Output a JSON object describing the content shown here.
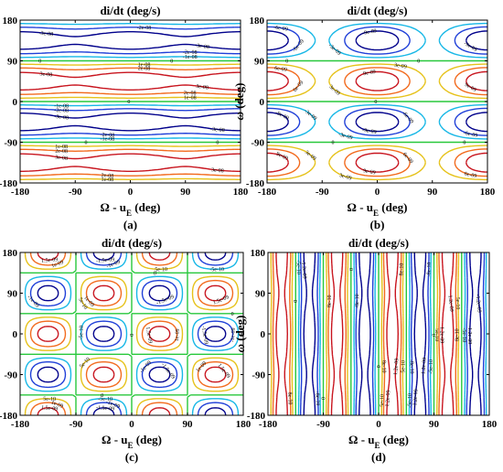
{
  "figure": {
    "panels": [
      {
        "id": "a",
        "tag": "(a)",
        "title": "di/dt (deg/s)",
        "ylabel": "ω",
        "ylabel_unit": "(deg)",
        "xlabel": "Ω - u",
        "xlabel_sub": "E",
        "xlabel_unit": " (deg)",
        "xticks": [
          "-180",
          "-90",
          "0",
          "90",
          "180"
        ],
        "yticks": [
          "180",
          "90",
          "0",
          "-90",
          "-180"
        ],
        "contour_labels": [
          "-1e-08",
          "-2e-08",
          "-3e-08",
          "1e-08",
          "2e-08",
          "3e-08",
          "0"
        ]
      },
      {
        "id": "b",
        "tag": "(b)",
        "title": "di/dt (deg/s)",
        "ylabel": "ω",
        "ylabel_unit": "(deg)",
        "xlabel": "Ω - u",
        "xlabel_sub": "E",
        "xlabel_unit": " (deg)",
        "xticks": [
          "-180",
          "-90",
          "0",
          "90",
          "180"
        ],
        "yticks": [
          "180",
          "90",
          "0",
          "-90",
          "-180"
        ],
        "contour_labels": [
          "-3e-09",
          "-6e-09",
          "-9e-09",
          "3e-09",
          "6e-09",
          "9e-09",
          "0"
        ]
      },
      {
        "id": "c",
        "tag": "(c)",
        "title": "di/dt (deg/s)",
        "ylabel": "ω",
        "ylabel_unit": "(deg)",
        "xlabel": "Ω - u",
        "xlabel_sub": "E",
        "xlabel_unit": " (deg)",
        "xticks": [
          "-180",
          "-90",
          "0",
          "90",
          "180"
        ],
        "yticks": [
          "180",
          "90",
          "0",
          "-90",
          "-180"
        ],
        "contour_labels": [
          "-5e-10",
          "-1e-09",
          "-1.5e-09",
          "5e-10",
          "1e-09",
          "1.5e-09",
          "0"
        ]
      },
      {
        "id": "d",
        "tag": "(d)",
        "title": "di/dt (deg/s)",
        "ylabel": "ω",
        "ylabel_unit": "(deg)",
        "xlabel": "Ω - u",
        "xlabel_sub": "E",
        "xlabel_unit": " (deg)",
        "xticks": [
          "-180",
          "-90",
          "0",
          "90",
          "180"
        ],
        "yticks": [
          "180",
          "90",
          "0",
          "-90",
          "-180"
        ],
        "contour_labels": [
          "-5e-10",
          "-8e-10",
          "-1.2e-09",
          "5e-10",
          "8e-10",
          "1.2e-09",
          "0"
        ]
      }
    ]
  },
  "chart_data": [
    {
      "type": "contour",
      "panel": "(a)",
      "title": "di/dt (deg/s)",
      "xlabel": "Ω - uE (deg)",
      "ylabel": "ω (deg)",
      "xlim": [
        -180,
        180
      ],
      "ylim": [
        -180,
        180
      ],
      "model": {
        "kind": "horizontal",
        "amplitude": 3.5e-08,
        "y_frequency": 2,
        "x_modulation": 0.1
      },
      "levels": [
        -3e-08,
        -2e-08,
        -1e-08,
        0,
        1e-08,
        2e-08,
        3e-08
      ],
      "level_colors": [
        "#00008b",
        "#1f3fd8",
        "#16b7e6",
        "#28c83c",
        "#e6c21a",
        "#f26a1d",
        "#c8141e"
      ]
    },
    {
      "type": "contour",
      "panel": "(b)",
      "title": "di/dt (deg/s)",
      "xlabel": "Ω - uE (deg)",
      "ylabel": "ω (deg)",
      "xlim": [
        -180,
        180
      ],
      "ylim": [
        -180,
        180
      ],
      "model": {
        "kind": "islands",
        "amplitude": 1.05e-08,
        "y_frequency": 2,
        "x_modulation": 0.45
      },
      "levels": [
        -9e-09,
        -6e-09,
        -3e-09,
        0,
        3e-09,
        6e-09,
        9e-09
      ],
      "level_colors": [
        "#00008b",
        "#1f3fd8",
        "#16b7e6",
        "#28c83c",
        "#e6c21a",
        "#f26a1d",
        "#c8141e"
      ]
    },
    {
      "type": "contour",
      "panel": "(c)",
      "title": "di/dt (deg/s)",
      "xlabel": "Ω - uE (deg)",
      "ylabel": "ω (deg)",
      "xlim": [
        -180,
        180
      ],
      "ylim": [
        -180,
        180
      ],
      "model": {
        "kind": "cells",
        "amplitude": 1.8e-09,
        "x_frequency": 2,
        "y_frequency": 2
      },
      "levels": [
        -1.5e-09,
        -1e-09,
        -5e-10,
        0,
        5e-10,
        1e-09,
        1.5e-09
      ],
      "level_colors": [
        "#00008b",
        "#1f3fd8",
        "#16b7e6",
        "#28c83c",
        "#e6c21a",
        "#f26a1d",
        "#c8141e"
      ]
    },
    {
      "type": "contour",
      "panel": "(d)",
      "title": "di/dt (deg/s)",
      "xlabel": "Ω - uE (deg)",
      "ylabel": "ω (deg)",
      "xlim": [
        -180,
        180
      ],
      "ylim": [
        -180,
        180
      ],
      "model": {
        "kind": "vertical",
        "amplitude": 1.4e-09,
        "x_frequency": 4,
        "y_modulation": 0.08
      },
      "levels": [
        -1.2e-09,
        -8e-10,
        -5e-10,
        0,
        5e-10,
        8e-10,
        1.2e-09
      ],
      "level_colors": [
        "#00008b",
        "#1f3fd8",
        "#16b7e6",
        "#28c83c",
        "#e6c21a",
        "#f26a1d",
        "#c8141e"
      ]
    }
  ]
}
